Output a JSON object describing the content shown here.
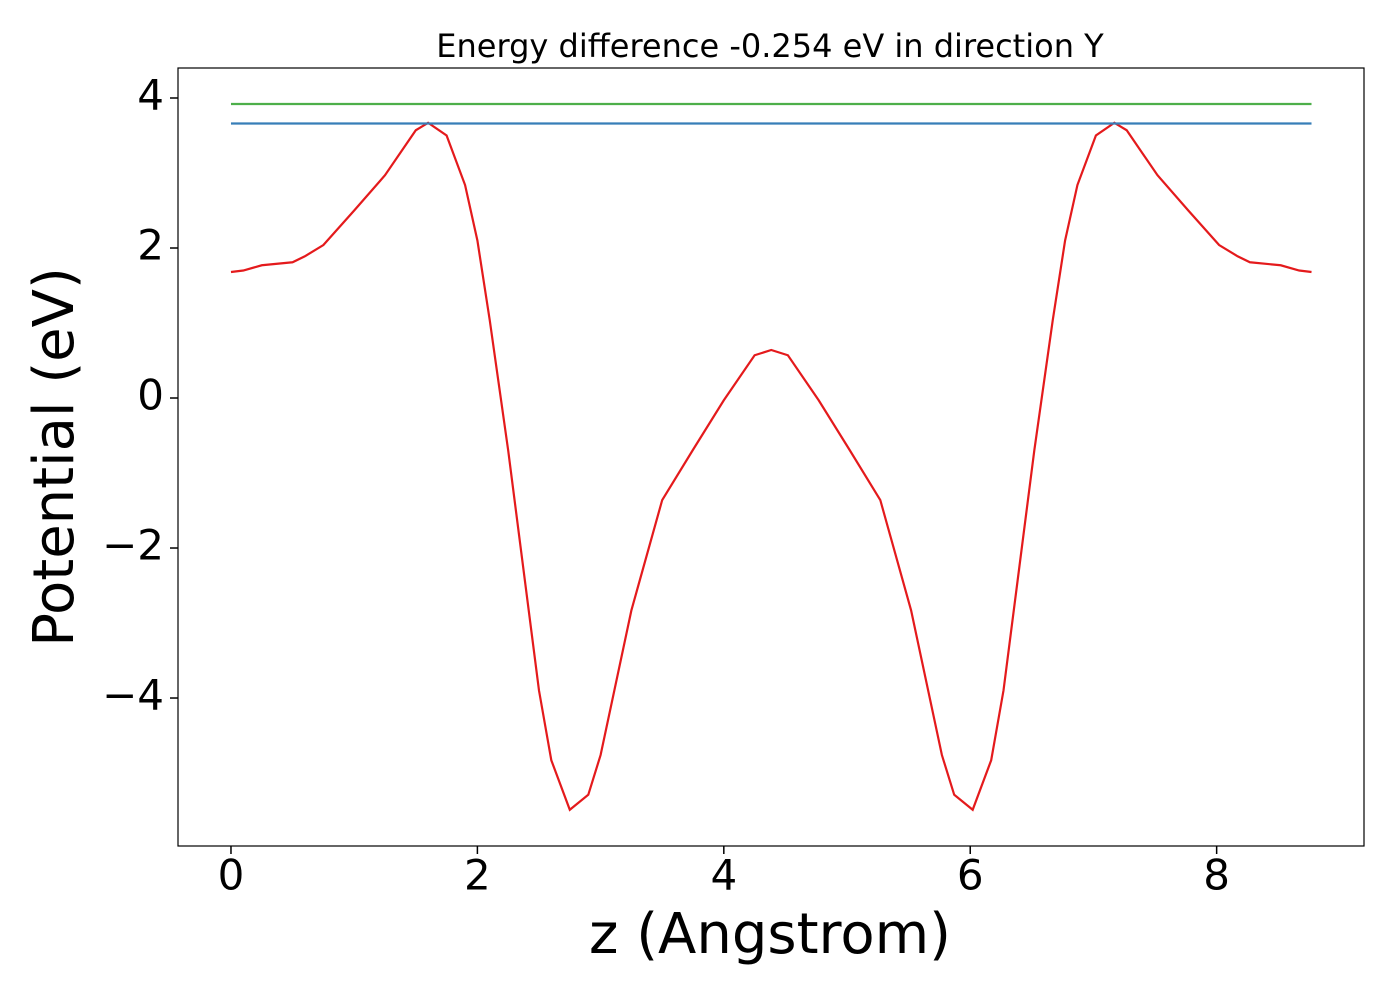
{
  "chart_data": {
    "type": "line",
    "title": "Energy difference -0.254 eV in direction Y",
    "x_label": "z (Angstrom)",
    "y_label": "Potential (eV)",
    "series": [
      {
        "color": "#e41a1c",
        "x": [
          0,
          0.1,
          0.25,
          0.5,
          0.6,
          0.75,
          1.0,
          1.25,
          1.5,
          1.6,
          1.75,
          1.9,
          2.0,
          2.1,
          2.25,
          2.5,
          2.6,
          2.75,
          2.9,
          3.0,
          3.25,
          3.5,
          3.75,
          4.0,
          4.25,
          4.385,
          4.52,
          4.77,
          5.02,
          5.27,
          5.52,
          5.77,
          5.87,
          6.02,
          6.17,
          6.27,
          6.52,
          6.67,
          6.77,
          6.87,
          7.02,
          7.17,
          7.27,
          7.52,
          7.77,
          8.02,
          8.17,
          8.27,
          8.52,
          8.67,
          8.77
        ],
        "values": [
          1.68,
          1.7,
          1.77,
          1.81,
          1.89,
          2.04,
          2.5,
          2.97,
          3.57,
          3.67,
          3.5,
          2.84,
          2.1,
          1.04,
          -0.7,
          -3.9,
          -4.83,
          -5.49,
          -5.29,
          -4.76,
          -2.83,
          -1.36,
          -0.69,
          -0.03,
          0.57,
          0.64,
          0.57,
          -0.03,
          -0.69,
          -1.36,
          -2.83,
          -4.76,
          -5.29,
          -5.49,
          -4.83,
          -3.9,
          -0.7,
          1.04,
          2.1,
          2.84,
          3.5,
          3.67,
          3.57,
          2.97,
          2.5,
          2.04,
          1.89,
          1.81,
          1.77,
          1.7,
          1.68
        ]
      },
      {
        "color": "#4daf4a",
        "x": [
          0,
          8.77
        ],
        "values": [
          3.92,
          3.92
        ]
      },
      {
        "color": "#377eb8",
        "x": [
          0,
          8.77
        ],
        "values": [
          3.66,
          3.66
        ]
      }
    ],
    "xlim": [
      -0.43,
      9.196
    ],
    "ylim": [
      -5.973,
      4.4
    ],
    "xticks": [
      0,
      2,
      4,
      6,
      8
    ],
    "yticks": [
      {
        "value": -4,
        "label": "−4"
      },
      {
        "value": -2,
        "label": "−2"
      },
      0,
      2,
      4
    ]
  }
}
